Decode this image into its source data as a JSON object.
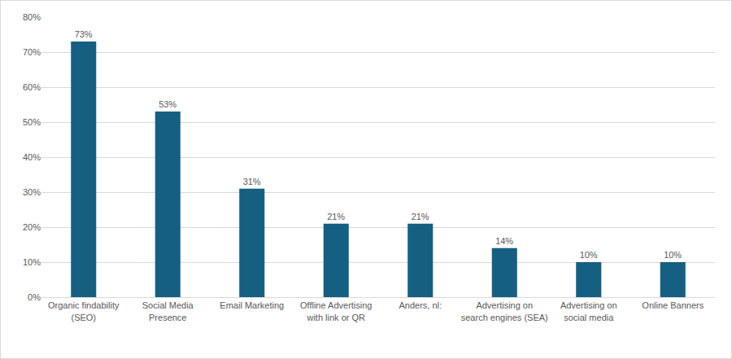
{
  "chart_data": {
    "type": "bar",
    "categories": [
      "Organic findability (SEO)",
      "Social Media Presence",
      "Email Marketing",
      "Offline Advertising with link or QR",
      "Anders, nl:",
      "Advertising on search engines (SEA)",
      "Advertising on social media",
      "Online Banners"
    ],
    "values": [
      73,
      53,
      31,
      21,
      21,
      14,
      10,
      10
    ],
    "value_labels": [
      "73%",
      "53%",
      "31%",
      "21%",
      "21%",
      "14%",
      "10%",
      "10%"
    ],
    "data_labels": true,
    "color": "#155f83",
    "ylim": [
      0,
      80
    ],
    "yticks": [
      {
        "value": 0,
        "label": "0%"
      },
      {
        "value": 10,
        "label": "10%"
      },
      {
        "value": 20,
        "label": "20%"
      },
      {
        "value": 30,
        "label": "30%"
      },
      {
        "value": 40,
        "label": "40%"
      },
      {
        "value": 50,
        "label": "50%"
      },
      {
        "value": 60,
        "label": "60%"
      },
      {
        "value": 70,
        "label": "70%"
      },
      {
        "value": 80,
        "label": "80%"
      }
    ],
    "grid": true
  }
}
